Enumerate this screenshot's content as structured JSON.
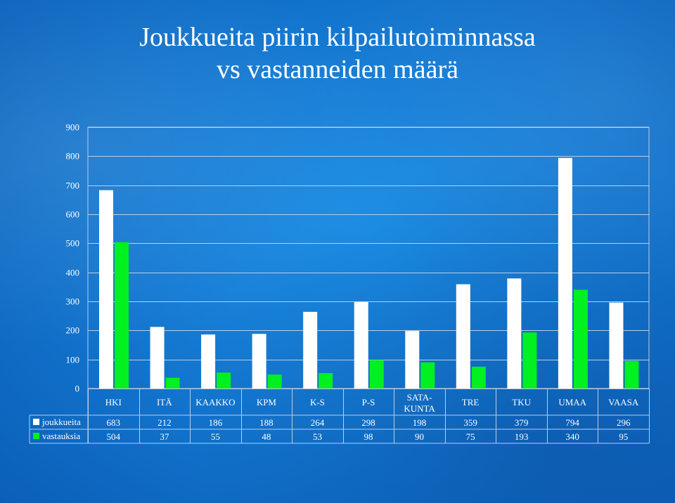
{
  "title_line1": "Joukkueita piirin kilpailutoiminnassa",
  "title_line2": "vs vastanneiden määrä",
  "chart_data": {
    "type": "bar",
    "categories": [
      [
        "HKI"
      ],
      [
        "ITÄ"
      ],
      [
        "KAAKKO"
      ],
      [
        "KPM"
      ],
      [
        "K-S"
      ],
      [
        "P-S"
      ],
      [
        "SATA-",
        "KUNTA"
      ],
      [
        "TRE"
      ],
      [
        "TKU"
      ],
      [
        "UMAA"
      ],
      [
        "VAASA"
      ]
    ],
    "series": [
      {
        "name": "joukkueita",
        "color": "#ffffff",
        "values": [
          683,
          212,
          186,
          188,
          264,
          298,
          198,
          359,
          379,
          794,
          296
        ]
      },
      {
        "name": "vastauksia",
        "color": "#00f020",
        "values": [
          504,
          37,
          55,
          48,
          53,
          98,
          90,
          75,
          193,
          340,
          95
        ]
      }
    ],
    "ylim": [
      0,
      900
    ],
    "yticks": [
      0,
      100,
      200,
      300,
      400,
      500,
      600,
      700,
      800,
      900
    ],
    "grid": true,
    "legend": "data-table"
  }
}
